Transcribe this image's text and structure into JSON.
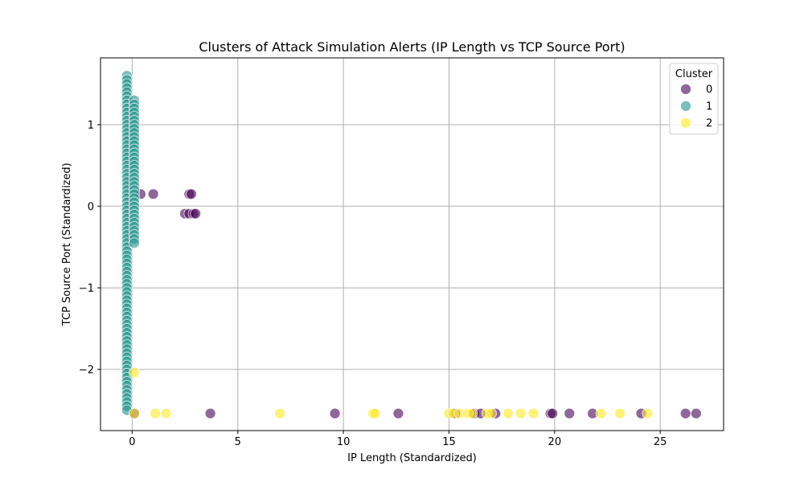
{
  "colors": {
    "cluster_0": "#440154",
    "cluster_1": "#21918c",
    "cluster_2": "#fde725",
    "grid": "#b0b0b0",
    "frame": "#000000"
  },
  "chart_data": {
    "type": "scatter",
    "title": "Clusters of Attack Simulation Alerts (IP Length vs TCP Source Port)",
    "xlabel": "IP Length (Standardized)",
    "ylabel": "TCP Source Port (Standardized)",
    "xlim": [
      -1.5,
      28.0
    ],
    "ylim": [
      -2.75,
      1.82
    ],
    "xticks": [
      0,
      5,
      10,
      15,
      20,
      25
    ],
    "yticks": [
      -2,
      -1,
      0,
      1
    ],
    "grid": true,
    "legend": {
      "title": "Cluster",
      "position": "top-right",
      "entries": [
        "0",
        "1",
        "2"
      ]
    },
    "series": [
      {
        "name": "0",
        "color": "#440154",
        "points": [
          [
            0.4,
            0.15
          ],
          [
            1.0,
            0.15
          ],
          [
            2.7,
            0.15
          ],
          [
            2.8,
            0.15
          ],
          [
            2.5,
            -0.09
          ],
          [
            2.7,
            -0.09
          ],
          [
            2.9,
            -0.09
          ],
          [
            3.0,
            -0.09
          ],
          [
            0.1,
            -2.54
          ],
          [
            3.7,
            -2.54
          ],
          [
            9.6,
            -2.54
          ],
          [
            12.6,
            -2.54
          ],
          [
            15.3,
            -2.54
          ],
          [
            16.2,
            -2.54
          ],
          [
            16.5,
            -2.54
          ],
          [
            17.2,
            -2.54
          ],
          [
            19.8,
            -2.54
          ],
          [
            19.9,
            -2.54
          ],
          [
            20.7,
            -2.54
          ],
          [
            21.8,
            -2.54
          ],
          [
            24.1,
            -2.54
          ],
          [
            26.2,
            -2.54
          ],
          [
            26.7,
            -2.54
          ]
        ]
      },
      {
        "name": "1",
        "color": "#21918c",
        "points": [
          [
            -0.25,
            1.6
          ],
          [
            -0.25,
            1.55
          ],
          [
            -0.25,
            1.5
          ],
          [
            -0.25,
            1.45
          ],
          [
            -0.25,
            1.4
          ],
          [
            -0.25,
            1.35
          ],
          [
            -0.25,
            1.3
          ],
          [
            -0.25,
            1.25
          ],
          [
            -0.25,
            1.2
          ],
          [
            -0.25,
            1.15
          ],
          [
            -0.25,
            1.1
          ],
          [
            -0.25,
            1.05
          ],
          [
            -0.25,
            1.0
          ],
          [
            -0.25,
            0.95
          ],
          [
            -0.25,
            0.9
          ],
          [
            -0.25,
            0.85
          ],
          [
            -0.25,
            0.8
          ],
          [
            -0.25,
            0.75
          ],
          [
            -0.25,
            0.7
          ],
          [
            -0.25,
            0.65
          ],
          [
            -0.25,
            0.6
          ],
          [
            -0.25,
            0.55
          ],
          [
            -0.25,
            0.5
          ],
          [
            -0.25,
            0.45
          ],
          [
            -0.25,
            0.4
          ],
          [
            -0.25,
            0.35
          ],
          [
            -0.25,
            0.3
          ],
          [
            -0.25,
            0.25
          ],
          [
            -0.25,
            0.2
          ],
          [
            -0.25,
            0.15
          ],
          [
            -0.25,
            0.1
          ],
          [
            -0.25,
            0.05
          ],
          [
            -0.25,
            0.0
          ],
          [
            -0.25,
            -0.05
          ],
          [
            -0.25,
            -0.1
          ],
          [
            -0.25,
            -0.15
          ],
          [
            -0.25,
            -0.2
          ],
          [
            -0.25,
            -0.25
          ],
          [
            -0.25,
            -0.3
          ],
          [
            -0.25,
            -0.35
          ],
          [
            -0.25,
            -0.4
          ],
          [
            -0.25,
            -0.45
          ],
          [
            -0.25,
            -0.5
          ],
          [
            -0.25,
            -0.55
          ],
          [
            -0.25,
            -0.6
          ],
          [
            -0.25,
            -0.65
          ],
          [
            -0.25,
            -0.7
          ],
          [
            -0.25,
            -0.75
          ],
          [
            -0.25,
            -0.8
          ],
          [
            -0.25,
            -0.85
          ],
          [
            -0.25,
            -0.9
          ],
          [
            -0.25,
            -0.95
          ],
          [
            -0.25,
            -1.0
          ],
          [
            -0.25,
            -1.05
          ],
          [
            -0.25,
            -1.1
          ],
          [
            -0.25,
            -1.15
          ],
          [
            -0.25,
            -1.2
          ],
          [
            -0.25,
            -1.25
          ],
          [
            -0.25,
            -1.3
          ],
          [
            -0.25,
            -1.35
          ],
          [
            -0.25,
            -1.4
          ],
          [
            -0.25,
            -1.45
          ],
          [
            -0.25,
            -1.5
          ],
          [
            -0.25,
            -1.55
          ],
          [
            -0.25,
            -1.6
          ],
          [
            -0.25,
            -1.65
          ],
          [
            -0.25,
            -1.7
          ],
          [
            -0.25,
            -1.75
          ],
          [
            -0.25,
            -1.8
          ],
          [
            -0.25,
            -1.85
          ],
          [
            -0.25,
            -1.9
          ],
          [
            -0.25,
            -1.95
          ],
          [
            -0.25,
            -2.0
          ],
          [
            -0.25,
            -2.05
          ],
          [
            -0.25,
            -2.1
          ],
          [
            -0.25,
            -2.15
          ],
          [
            -0.25,
            -2.2
          ],
          [
            -0.25,
            -2.25
          ],
          [
            -0.25,
            -2.3
          ],
          [
            -0.25,
            -2.35
          ],
          [
            -0.25,
            -2.4
          ],
          [
            -0.25,
            -2.45
          ],
          [
            -0.25,
            -2.5
          ],
          [
            0.1,
            1.3
          ],
          [
            0.1,
            1.25
          ],
          [
            0.1,
            1.2
          ],
          [
            0.1,
            1.15
          ],
          [
            0.1,
            1.1
          ],
          [
            0.1,
            1.05
          ],
          [
            0.1,
            1.0
          ],
          [
            0.1,
            0.95
          ],
          [
            0.1,
            0.9
          ],
          [
            0.1,
            0.85
          ],
          [
            0.1,
            0.8
          ],
          [
            0.1,
            0.75
          ],
          [
            0.1,
            0.7
          ],
          [
            0.1,
            0.65
          ],
          [
            0.1,
            0.6
          ],
          [
            0.1,
            0.55
          ],
          [
            0.1,
            0.5
          ],
          [
            0.1,
            0.45
          ],
          [
            0.1,
            0.4
          ],
          [
            0.1,
            0.35
          ],
          [
            0.1,
            0.3
          ],
          [
            0.1,
            0.25
          ],
          [
            0.1,
            0.2
          ],
          [
            0.1,
            0.15
          ],
          [
            0.1,
            0.1
          ],
          [
            0.1,
            0.05
          ],
          [
            0.1,
            0.0
          ],
          [
            0.1,
            -0.05
          ],
          [
            0.1,
            -0.1
          ],
          [
            0.1,
            -0.15
          ],
          [
            0.1,
            -0.2
          ],
          [
            0.1,
            -0.25
          ],
          [
            0.1,
            -0.3
          ],
          [
            0.1,
            -0.35
          ],
          [
            0.1,
            -0.4
          ],
          [
            0.1,
            -0.45
          ]
        ]
      },
      {
        "name": "2",
        "color": "#fde725",
        "points": [
          [
            0.1,
            -2.04
          ],
          [
            0.1,
            -2.54
          ],
          [
            1.1,
            -2.54
          ],
          [
            1.6,
            -2.54
          ],
          [
            7.0,
            -2.54
          ],
          [
            11.4,
            -2.54
          ],
          [
            11.5,
            -2.54
          ],
          [
            15.0,
            -2.54
          ],
          [
            15.2,
            -2.54
          ],
          [
            15.5,
            -2.54
          ],
          [
            15.9,
            -2.54
          ],
          [
            16.1,
            -2.54
          ],
          [
            16.8,
            -2.54
          ],
          [
            17.0,
            -2.54
          ],
          [
            17.8,
            -2.54
          ],
          [
            18.4,
            -2.54
          ],
          [
            19.0,
            -2.54
          ],
          [
            22.2,
            -2.54
          ],
          [
            23.1,
            -2.54
          ],
          [
            24.4,
            -2.54
          ]
        ]
      }
    ]
  }
}
